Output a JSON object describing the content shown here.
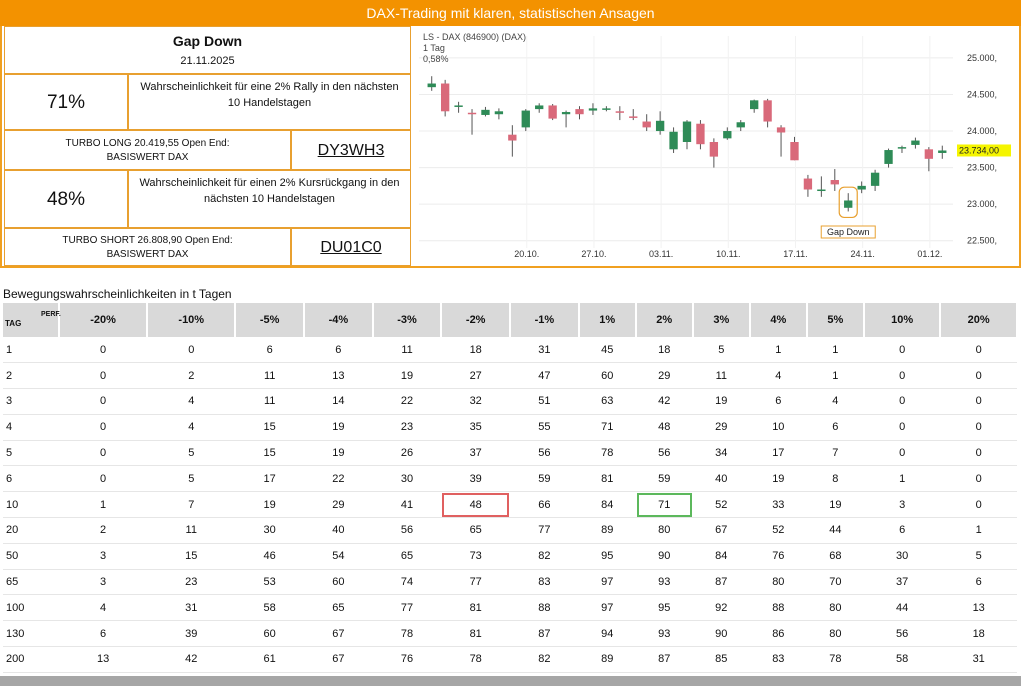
{
  "banner": {
    "title": "DAX-Trading mit klaren, statistischen Ansagen"
  },
  "info": {
    "title": "Gap Down",
    "date": "21.11.2025",
    "rally": {
      "pct": "71%",
      "text": "Wahrscheinlichkeit für eine 2% Rally in den nächsten 10 Handelstagen"
    },
    "long": {
      "line1": "TURBO LONG 20.419,55 Open End:",
      "line2": "BASISWERT DAX",
      "wkn": "DY3WH3"
    },
    "drop": {
      "pct": "48%",
      "text": "Wahrscheinlichkeit für einen 2% Kursrückgang in den nächsten 10 Handelstagen"
    },
    "short": {
      "line1": "TURBO SHORT 26.808,90 Open End:",
      "line2": "BASISWERT DAX",
      "wkn": "DU01C0"
    }
  },
  "chart": {
    "header": "LS - DAX (846900) (DAX)",
    "period": "1 Tag",
    "change": "0,58%",
    "y_ticks": [
      "25.000,",
      "24.500,",
      "24.000,",
      "23.500,",
      "23.000,",
      "22.500,"
    ],
    "x_ticks": [
      "20.10.",
      "27.10.",
      "03.11.",
      "10.11.",
      "17.11.",
      "24.11.",
      "01.12."
    ],
    "last_label": "23.734,00",
    "annotation": "Gap Down",
    "colors": {
      "up": "#2e8b57",
      "down": "#d9697a",
      "accent": "#f0a020"
    }
  },
  "chart_data": {
    "type": "candlestick",
    "ylim": [
      22400,
      25300
    ],
    "y_ticks": [
      25000,
      24500,
      24000,
      23500,
      23000,
      22500
    ],
    "last": 23734,
    "candles": [
      {
        "o": 24600,
        "h": 24750,
        "l": 24550,
        "c": 24650
      },
      {
        "o": 24650,
        "h": 24700,
        "l": 24200,
        "c": 24270
      },
      {
        "o": 24350,
        "h": 24400,
        "l": 24250,
        "c": 24350
      },
      {
        "o": 24250,
        "h": 24300,
        "l": 23950,
        "c": 24230
      },
      {
        "o": 24220,
        "h": 24330,
        "l": 24200,
        "c": 24290
      },
      {
        "o": 24230,
        "h": 24310,
        "l": 24160,
        "c": 24270
      },
      {
        "o": 23950,
        "h": 24080,
        "l": 23650,
        "c": 23870
      },
      {
        "o": 24050,
        "h": 24300,
        "l": 24000,
        "c": 24280
      },
      {
        "o": 24300,
        "h": 24380,
        "l": 24250,
        "c": 24350
      },
      {
        "o": 24350,
        "h": 24370,
        "l": 24150,
        "c": 24170
      },
      {
        "o": 24230,
        "h": 24280,
        "l": 24050,
        "c": 24260
      },
      {
        "o": 24300,
        "h": 24340,
        "l": 24160,
        "c": 24230
      },
      {
        "o": 24280,
        "h": 24380,
        "l": 24220,
        "c": 24310
      },
      {
        "o": 24300,
        "h": 24340,
        "l": 24270,
        "c": 24310
      },
      {
        "o": 24270,
        "h": 24340,
        "l": 24150,
        "c": 24250
      },
      {
        "o": 24200,
        "h": 24300,
        "l": 24150,
        "c": 24180
      },
      {
        "o": 24130,
        "h": 24230,
        "l": 24000,
        "c": 24050
      },
      {
        "o": 24000,
        "h": 24270,
        "l": 23950,
        "c": 24140
      },
      {
        "o": 23750,
        "h": 24050,
        "l": 23700,
        "c": 23990
      },
      {
        "o": 23850,
        "h": 24150,
        "l": 23750,
        "c": 24130
      },
      {
        "o": 24100,
        "h": 24150,
        "l": 23750,
        "c": 23820
      },
      {
        "o": 23850,
        "h": 23900,
        "l": 23500,
        "c": 23650
      },
      {
        "o": 23900,
        "h": 24050,
        "l": 23880,
        "c": 24000
      },
      {
        "o": 24050,
        "h": 24150,
        "l": 24000,
        "c": 24120
      },
      {
        "o": 24300,
        "h": 24430,
        "l": 24250,
        "c": 24420
      },
      {
        "o": 24420,
        "h": 24440,
        "l": 24050,
        "c": 24130
      },
      {
        "o": 24050,
        "h": 24080,
        "l": 23650,
        "c": 23980
      },
      {
        "o": 23850,
        "h": 23920,
        "l": 23600,
        "c": 23600
      },
      {
        "o": 23350,
        "h": 23400,
        "l": 23100,
        "c": 23200
      },
      {
        "o": 23200,
        "h": 23380,
        "l": 23100,
        "c": 23200
      },
      {
        "o": 23330,
        "h": 23480,
        "l": 23180,
        "c": 23270
      },
      {
        "o": 22950,
        "h": 23150,
        "l": 22900,
        "c": 23050
      },
      {
        "o": 23200,
        "h": 23310,
        "l": 23150,
        "c": 23250
      },
      {
        "o": 23250,
        "h": 23470,
        "l": 23180,
        "c": 23430
      },
      {
        "o": 23550,
        "h": 23760,
        "l": 23500,
        "c": 23740
      },
      {
        "o": 23770,
        "h": 23800,
        "l": 23700,
        "c": 23780
      },
      {
        "o": 23810,
        "h": 23910,
        "l": 23760,
        "c": 23870
      },
      {
        "o": 23750,
        "h": 23780,
        "l": 23450,
        "c": 23620
      },
      {
        "o": 23700,
        "h": 23800,
        "l": 23620,
        "c": 23734
      }
    ]
  },
  "table": {
    "section_title": "Bewegungswahrscheinlichkeiten in t Tagen",
    "corner_tag": "TAG",
    "corner_perf": "PERF.",
    "headers": [
      "-20%",
      "-10%",
      "-5%",
      "-4%",
      "-3%",
      "-2%",
      "-1%",
      "1%",
      "2%",
      "3%",
      "4%",
      "5%",
      "10%",
      "20%"
    ],
    "rows": [
      {
        "day": "1",
        "v": [
          "0",
          "0",
          "6",
          "6",
          "11",
          "18",
          "31",
          "45",
          "18",
          "5",
          "1",
          "1",
          "0",
          "0"
        ]
      },
      {
        "day": "2",
        "v": [
          "0",
          "2",
          "11",
          "13",
          "19",
          "27",
          "47",
          "60",
          "29",
          "11",
          "4",
          "1",
          "0",
          "0"
        ]
      },
      {
        "day": "3",
        "v": [
          "0",
          "4",
          "11",
          "14",
          "22",
          "32",
          "51",
          "63",
          "42",
          "19",
          "6",
          "4",
          "0",
          "0"
        ]
      },
      {
        "day": "4",
        "v": [
          "0",
          "4",
          "15",
          "19",
          "23",
          "35",
          "55",
          "71",
          "48",
          "29",
          "10",
          "6",
          "0",
          "0"
        ]
      },
      {
        "day": "5",
        "v": [
          "0",
          "5",
          "15",
          "19",
          "26",
          "37",
          "56",
          "78",
          "56",
          "34",
          "17",
          "7",
          "0",
          "0"
        ]
      },
      {
        "day": "6",
        "v": [
          "0",
          "5",
          "17",
          "22",
          "30",
          "39",
          "59",
          "81",
          "59",
          "40",
          "19",
          "8",
          "1",
          "0"
        ]
      },
      {
        "day": "10",
        "v": [
          "1",
          "7",
          "19",
          "29",
          "41",
          "48",
          "66",
          "84",
          "71",
          "52",
          "33",
          "19",
          "3",
          "0"
        ]
      },
      {
        "day": "20",
        "v": [
          "2",
          "11",
          "30",
          "40",
          "56",
          "65",
          "77",
          "89",
          "80",
          "67",
          "52",
          "44",
          "6",
          "1"
        ]
      },
      {
        "day": "50",
        "v": [
          "3",
          "15",
          "46",
          "54",
          "65",
          "73",
          "82",
          "95",
          "90",
          "84",
          "76",
          "68",
          "30",
          "5"
        ]
      },
      {
        "day": "65",
        "v": [
          "3",
          "23",
          "53",
          "60",
          "74",
          "77",
          "83",
          "97",
          "93",
          "87",
          "80",
          "70",
          "37",
          "6"
        ]
      },
      {
        "day": "100",
        "v": [
          "4",
          "31",
          "58",
          "65",
          "77",
          "81",
          "88",
          "97",
          "95",
          "92",
          "88",
          "80",
          "44",
          "13"
        ]
      },
      {
        "day": "130",
        "v": [
          "6",
          "39",
          "60",
          "67",
          "78",
          "81",
          "87",
          "94",
          "93",
          "90",
          "86",
          "80",
          "56",
          "18"
        ]
      },
      {
        "day": "200",
        "v": [
          "13",
          "42",
          "61",
          "67",
          "76",
          "78",
          "82",
          "89",
          "87",
          "85",
          "83",
          "78",
          "58",
          "31"
        ]
      }
    ],
    "highlight": {
      "red": {
        "row": 6,
        "col": 5
      },
      "green": {
        "row": 6,
        "col": 8
      }
    }
  }
}
